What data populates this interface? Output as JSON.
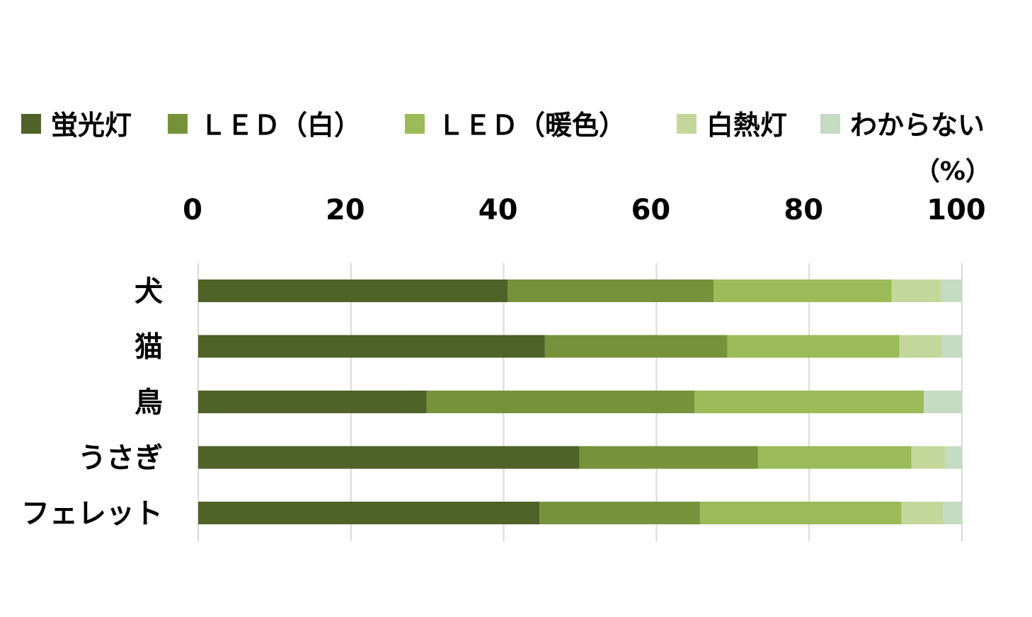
{
  "chart_data": {
    "type": "bar",
    "orientation": "horizontal",
    "stacked": true,
    "unit_label": "（%）",
    "categories": [
      "犬",
      "猫",
      "鳥",
      "うさぎ",
      "フェレット"
    ],
    "x_ticks": [
      "0",
      "20",
      "40",
      "60",
      "80",
      "100"
    ],
    "xlim": [
      0,
      100
    ],
    "axis_position": "top",
    "grid": true,
    "legend_position": "top",
    "series": [
      {
        "name": "蛍光灯",
        "color": "#4f6228",
        "values": [
          40.5,
          45.4,
          29.9,
          49.9,
          44.7
        ]
      },
      {
        "name": "ＬＥＤ（白）",
        "color": "#76933c",
        "values": [
          27.0,
          23.9,
          35.1,
          23.4,
          21.0
        ]
      },
      {
        "name": "ＬＥＤ（暖色）",
        "color": "#9bbb59",
        "values": [
          23.3,
          22.5,
          30.0,
          20.1,
          26.4
        ]
      },
      {
        "name": "白熱灯",
        "color": "#c4d79b",
        "values": [
          6.5,
          5.6,
          0.0,
          4.4,
          5.4
        ]
      },
      {
        "name": "わからない",
        "color": "#c5dbc2",
        "values": [
          2.7,
          2.6,
          5.0,
          2.2,
          2.5
        ]
      }
    ]
  }
}
